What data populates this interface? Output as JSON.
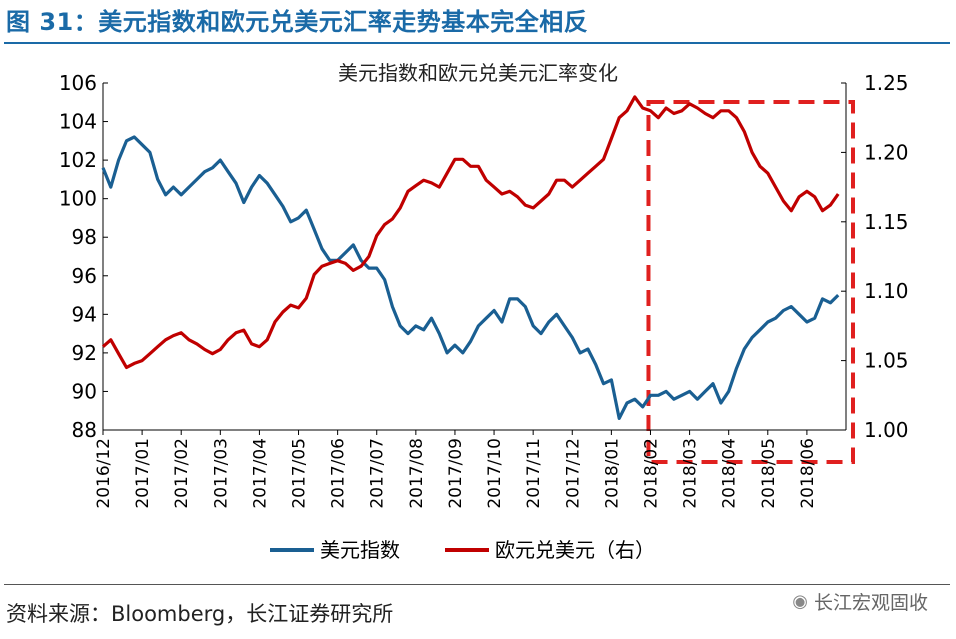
{
  "figure": {
    "title": "图 31：美元指数和欧元兑美元汇率走势基本完全相反",
    "source": "资料来源：Bloomberg，长江证券研究所",
    "watermark": "长江宏观固收",
    "watermark_icon": "wechat-icon"
  },
  "colors": {
    "usd": "#1a5f92",
    "eur": "#c00000",
    "highlight": "#e0201f"
  },
  "chart_data": {
    "type": "line",
    "title": "美元指数和欧元兑美元汇率变化",
    "x_ticks": [
      "2016/12",
      "2017/01",
      "2017/02",
      "2017/03",
      "2017/04",
      "2017/05",
      "2017/06",
      "2017/07",
      "2017/08",
      "2017/09",
      "2017/10",
      "2017/11",
      "2017/12",
      "2018/01",
      "2018/02",
      "2018/03",
      "2018/04",
      "2018/05",
      "2018/06"
    ],
    "y_left": {
      "min": 88,
      "max": 106,
      "ticks": [
        88,
        90,
        92,
        94,
        96,
        98,
        100,
        102,
        104,
        106
      ]
    },
    "y_right": {
      "min": 1.0,
      "max": 1.25,
      "ticks": [
        "1.00",
        "1.05",
        "1.10",
        "1.15",
        "1.20",
        "1.25"
      ]
    },
    "legend_position": "bottom",
    "grid": false,
    "highlight_region": {
      "from": "2018/02",
      "to": "2018/06"
    },
    "series": [
      {
        "name": "美元指数",
        "axis": "left",
        "x": [
          0,
          0.2,
          0.4,
          0.6,
          0.8,
          1.0,
          1.2,
          1.4,
          1.6,
          1.8,
          2.0,
          2.2,
          2.4,
          2.6,
          2.8,
          3.0,
          3.2,
          3.4,
          3.6,
          3.8,
          4.0,
          4.2,
          4.4,
          4.6,
          4.8,
          5.0,
          5.2,
          5.4,
          5.6,
          5.8,
          6.0,
          6.2,
          6.4,
          6.6,
          6.8,
          7.0,
          7.2,
          7.4,
          7.6,
          7.8,
          8.0,
          8.2,
          8.4,
          8.6,
          8.8,
          9.0,
          9.2,
          9.4,
          9.6,
          9.8,
          10.0,
          10.2,
          10.4,
          10.6,
          10.8,
          11.0,
          11.2,
          11.4,
          11.6,
          11.8,
          12.0,
          12.2,
          12.4,
          12.6,
          12.8,
          13.0,
          13.2,
          13.4,
          13.6,
          13.8,
          14.0,
          14.2,
          14.4,
          14.6,
          14.8,
          15.0,
          15.2,
          15.4,
          15.6,
          15.8,
          16.0,
          16.2,
          16.4,
          16.6,
          16.8,
          17.0,
          17.2,
          17.4,
          17.6,
          17.8,
          18.0,
          18.2,
          18.4,
          18.6,
          18.8
        ],
        "values": [
          101.6,
          100.6,
          102.0,
          103.0,
          103.2,
          102.8,
          102.4,
          101.0,
          100.2,
          100.6,
          100.2,
          100.6,
          101.0,
          101.4,
          101.6,
          102.0,
          101.4,
          100.8,
          99.8,
          100.6,
          101.2,
          100.8,
          100.2,
          99.6,
          98.8,
          99.0,
          99.4,
          98.4,
          97.4,
          96.8,
          96.8,
          97.2,
          97.6,
          96.8,
          96.4,
          96.4,
          95.8,
          94.4,
          93.4,
          93.0,
          93.4,
          93.2,
          93.8,
          93.0,
          92.0,
          92.4,
          92.0,
          92.6,
          93.4,
          93.8,
          94.2,
          93.6,
          94.8,
          94.8,
          94.4,
          93.4,
          93.0,
          93.6,
          94.0,
          93.4,
          92.8,
          92.0,
          92.2,
          91.4,
          90.4,
          90.6,
          88.6,
          89.4,
          89.6,
          89.2,
          89.8,
          89.8,
          90.0,
          89.6,
          89.8,
          90.0,
          89.6,
          90.0,
          90.4,
          89.4,
          90.0,
          91.2,
          92.2,
          92.8,
          93.2,
          93.6,
          93.8,
          94.2,
          94.4,
          94.0,
          93.6,
          93.8,
          94.8,
          94.6,
          95.0
        ]
      },
      {
        "name": "欧元兑美元（右）",
        "axis": "right",
        "x": [
          0,
          0.2,
          0.4,
          0.6,
          0.8,
          1.0,
          1.2,
          1.4,
          1.6,
          1.8,
          2.0,
          2.2,
          2.4,
          2.6,
          2.8,
          3.0,
          3.2,
          3.4,
          3.6,
          3.8,
          4.0,
          4.2,
          4.4,
          4.6,
          4.8,
          5.0,
          5.2,
          5.4,
          5.6,
          5.8,
          6.0,
          6.2,
          6.4,
          6.6,
          6.8,
          7.0,
          7.2,
          7.4,
          7.6,
          7.8,
          8.0,
          8.2,
          8.4,
          8.6,
          8.8,
          9.0,
          9.2,
          9.4,
          9.6,
          9.8,
          10.0,
          10.2,
          10.4,
          10.6,
          10.8,
          11.0,
          11.2,
          11.4,
          11.6,
          11.8,
          12.0,
          12.2,
          12.4,
          12.6,
          12.8,
          13.0,
          13.2,
          13.4,
          13.6,
          13.8,
          14.0,
          14.2,
          14.4,
          14.6,
          14.8,
          15.0,
          15.2,
          15.4,
          15.6,
          15.8,
          16.0,
          16.2,
          16.4,
          16.6,
          16.8,
          17.0,
          17.2,
          17.4,
          17.6,
          17.8,
          18.0,
          18.2,
          18.4,
          18.6,
          18.8
        ],
        "values": [
          1.06,
          1.065,
          1.055,
          1.045,
          1.048,
          1.05,
          1.055,
          1.06,
          1.065,
          1.068,
          1.07,
          1.065,
          1.062,
          1.058,
          1.055,
          1.058,
          1.065,
          1.07,
          1.072,
          1.062,
          1.06,
          1.065,
          1.078,
          1.085,
          1.09,
          1.088,
          1.095,
          1.112,
          1.118,
          1.12,
          1.122,
          1.12,
          1.115,
          1.118,
          1.125,
          1.14,
          1.148,
          1.152,
          1.16,
          1.172,
          1.176,
          1.18,
          1.178,
          1.175,
          1.185,
          1.195,
          1.195,
          1.19,
          1.19,
          1.18,
          1.175,
          1.17,
          1.172,
          1.168,
          1.162,
          1.16,
          1.165,
          1.17,
          1.18,
          1.18,
          1.175,
          1.18,
          1.185,
          1.19,
          1.195,
          1.21,
          1.225,
          1.23,
          1.24,
          1.232,
          1.23,
          1.225,
          1.232,
          1.228,
          1.23,
          1.235,
          1.232,
          1.228,
          1.225,
          1.23,
          1.23,
          1.225,
          1.215,
          1.2,
          1.19,
          1.185,
          1.175,
          1.165,
          1.158,
          1.168,
          1.172,
          1.168,
          1.158,
          1.162,
          1.17
        ]
      }
    ]
  }
}
